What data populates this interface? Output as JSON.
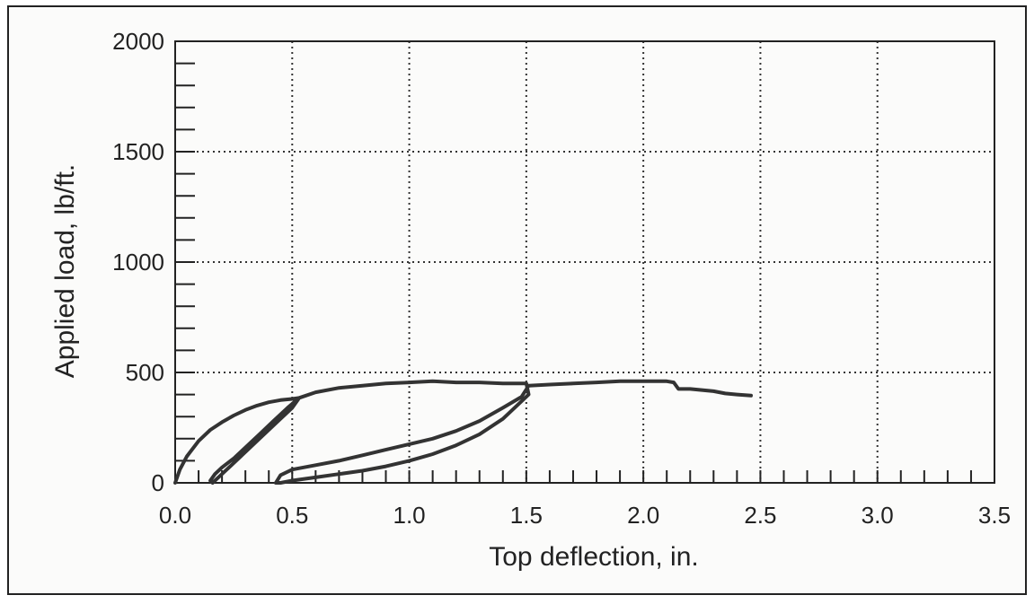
{
  "chart_data": {
    "type": "line",
    "title": "",
    "xlabel": "Top deflection, in.",
    "ylabel": "Applied load, lb/ft.",
    "xlim": [
      0,
      3.5
    ],
    "ylim": [
      0,
      2000
    ],
    "xticks": [
      0,
      0.5,
      1.0,
      1.5,
      2.0,
      2.5,
      3.0,
      3.5
    ],
    "xtick_labels": [
      "0.0",
      "0.5",
      "1.0",
      "1.5",
      "2.0",
      "2.5",
      "3.0",
      "3.5"
    ],
    "yticks": [
      0,
      500,
      1000,
      1500,
      2000
    ],
    "ytick_labels": [
      "0",
      "500",
      "1000",
      "1500",
      "2000"
    ],
    "grid": true,
    "grid_style": "dotted",
    "line_color": "#333333",
    "series": [
      {
        "name": "",
        "x": [
          0.0,
          0.02,
          0.05,
          0.1,
          0.15,
          0.2,
          0.25,
          0.3,
          0.35,
          0.4,
          0.45,
          0.5,
          0.53,
          0.48,
          0.42,
          0.36,
          0.3,
          0.25,
          0.2,
          0.17,
          0.15,
          0.16,
          0.2,
          0.28,
          0.36,
          0.44,
          0.5,
          0.53,
          0.6,
          0.7,
          0.8,
          0.9,
          1.0,
          1.1,
          1.2,
          1.3,
          1.4,
          1.5,
          1.51,
          1.45,
          1.4,
          1.3,
          1.2,
          1.1,
          1.0,
          0.9,
          0.8,
          0.7,
          0.6,
          0.5,
          0.45,
          0.43,
          0.45,
          0.5,
          0.6,
          0.7,
          0.8,
          0.9,
          1.0,
          1.1,
          1.2,
          1.3,
          1.4,
          1.48,
          1.51,
          1.6,
          1.7,
          1.8,
          1.9,
          2.0,
          2.05,
          2.1,
          2.13,
          2.15,
          2.2,
          2.3,
          2.35,
          2.4,
          2.46
        ],
        "y": [
          0,
          60,
          120,
          190,
          240,
          275,
          305,
          330,
          350,
          365,
          375,
          380,
          385,
          340,
          280,
          220,
          160,
          110,
          70,
          40,
          10,
          0,
          40,
          120,
          200,
          280,
          340,
          385,
          410,
          430,
          440,
          450,
          455,
          460,
          455,
          455,
          450,
          450,
          400,
          340,
          290,
          220,
          170,
          130,
          100,
          75,
          55,
          40,
          25,
          10,
          0,
          0,
          35,
          60,
          80,
          100,
          125,
          150,
          175,
          200,
          235,
          280,
          340,
          390,
          440,
          445,
          450,
          455,
          460,
          460,
          460,
          460,
          455,
          425,
          425,
          415,
          405,
          400,
          395
        ]
      }
    ]
  }
}
